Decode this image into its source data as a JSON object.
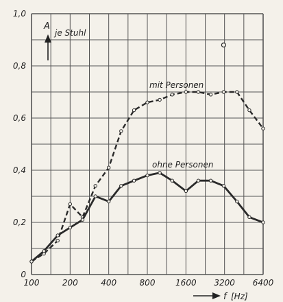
{
  "chart_data": {
    "type": "line",
    "x_scale": "log2",
    "xlim": [
      100,
      6400
    ],
    "ylim": [
      0,
      1.0
    ],
    "grid": true,
    "x_ticks": [
      "100",
      "200",
      "400",
      "800",
      "1600",
      "3200",
      "6400"
    ],
    "y_ticks": [
      "0",
      "0,2",
      "0,4",
      "0,6",
      "0,8",
      "1,0"
    ],
    "ylabel_main": "A",
    "ylabel_sub": "je Stuhl",
    "xlabel_main": "f",
    "xlabel_unit": "[Hz]",
    "series": [
      {
        "name": "mit Personen",
        "style": "dashed",
        "x": [
          100,
          125,
          160,
          200,
          250,
          315,
          400,
          500,
          630,
          800,
          1000,
          1250,
          1600,
          2000,
          2500,
          3150,
          4000,
          5000,
          6400
        ],
        "y": [
          0.05,
          0.08,
          0.13,
          0.27,
          0.22,
          0.34,
          0.41,
          0.55,
          0.63,
          0.66,
          0.67,
          0.69,
          0.7,
          0.7,
          0.69,
          0.7,
          0.7,
          0.63,
          0.56
        ]
      },
      {
        "name": "ohne Personen",
        "style": "solid",
        "x": [
          100,
          125,
          160,
          200,
          250,
          315,
          400,
          500,
          630,
          800,
          1000,
          1250,
          1600,
          2000,
          2500,
          3150,
          4000,
          5000,
          6400
        ],
        "y": [
          0.05,
          0.09,
          0.15,
          0.18,
          0.21,
          0.3,
          0.28,
          0.34,
          0.36,
          0.38,
          0.39,
          0.36,
          0.32,
          0.36,
          0.36,
          0.34,
          0.28,
          0.22,
          0.2
        ]
      }
    ],
    "outlier_point": {
      "x": 3150,
      "y": 0.88
    },
    "colors": {
      "line": "#2a2a2a",
      "grid": "#555555",
      "background": "#f4f1ea"
    }
  }
}
